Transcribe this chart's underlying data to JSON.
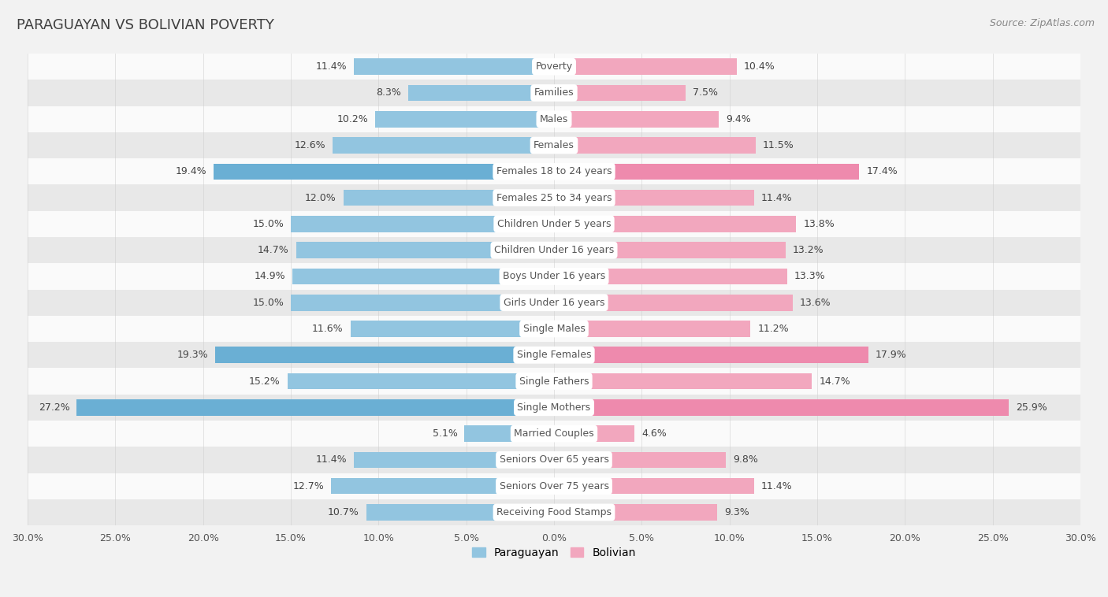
{
  "title": "PARAGUAYAN VS BOLIVIAN POVERTY",
  "source": "Source: ZipAtlas.com",
  "categories": [
    "Poverty",
    "Families",
    "Males",
    "Females",
    "Females 18 to 24 years",
    "Females 25 to 34 years",
    "Children Under 5 years",
    "Children Under 16 years",
    "Boys Under 16 years",
    "Girls Under 16 years",
    "Single Males",
    "Single Females",
    "Single Fathers",
    "Single Mothers",
    "Married Couples",
    "Seniors Over 65 years",
    "Seniors Over 75 years",
    "Receiving Food Stamps"
  ],
  "paraguayan": [
    11.4,
    8.3,
    10.2,
    12.6,
    19.4,
    12.0,
    15.0,
    14.7,
    14.9,
    15.0,
    11.6,
    19.3,
    15.2,
    27.2,
    5.1,
    11.4,
    12.7,
    10.7
  ],
  "bolivian": [
    10.4,
    7.5,
    9.4,
    11.5,
    17.4,
    11.4,
    13.8,
    13.2,
    13.3,
    13.6,
    11.2,
    17.9,
    14.7,
    25.9,
    4.6,
    9.8,
    11.4,
    9.3
  ],
  "paraguayan_color": "#92C5E0",
  "bolivian_color": "#F2A7BE",
  "highlight_paraguayan_color": "#6AAFD4",
  "highlight_bolivian_color": "#EE8AAD",
  "background_color": "#f2f2f2",
  "row_color_light": "#fafafa",
  "row_color_dark": "#e8e8e8",
  "axis_limit": 30.0,
  "bar_height": 0.62,
  "title_fontsize": 13,
  "label_fontsize": 9,
  "tick_fontsize": 9,
  "source_fontsize": 9
}
